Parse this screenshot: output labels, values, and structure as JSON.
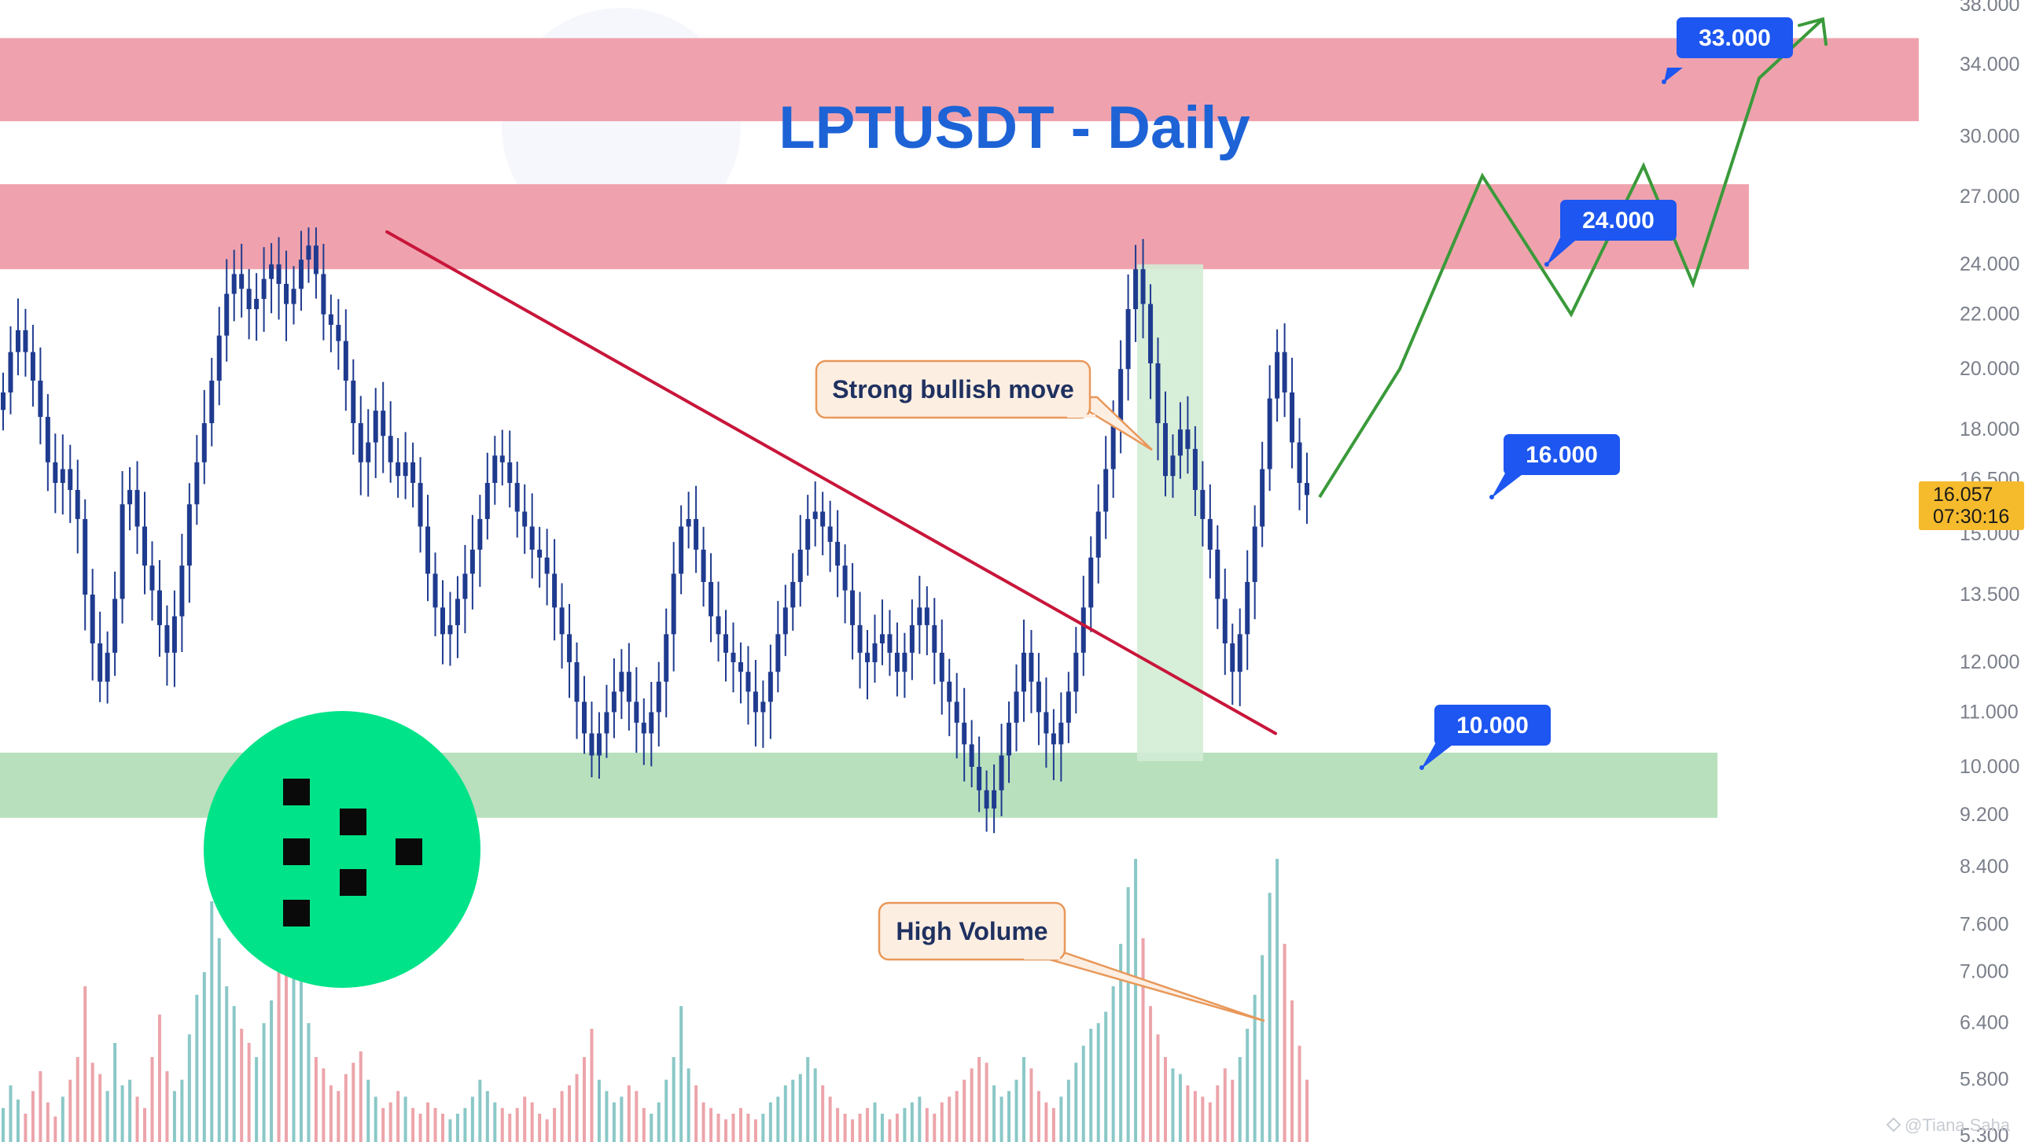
{
  "chart_data": {
    "type": "candlestick",
    "title": "LPTUSDT - Daily",
    "y_scale": "log",
    "ylim": [
      5.3,
      38.0
    ],
    "y_ticks": [
      "38.000",
      "34.000",
      "30.000",
      "27.000",
      "24.000",
      "22.000",
      "20.000",
      "18.000",
      "16.500",
      "15.000",
      "13.500",
      "12.000",
      "11.000",
      "10.000",
      "9.200",
      "8.400",
      "7.600",
      "7.000",
      "6.400",
      "5.800",
      "5.300"
    ],
    "current_price": {
      "value": "16.057",
      "countdown": "07:30:16"
    },
    "resistance_zones": [
      {
        "low": 30.8,
        "high": 35.6
      },
      {
        "low": 23.8,
        "high": 27.6
      }
    ],
    "support_zone": {
      "low": 9.15,
      "high": 10.25
    },
    "targets": [
      {
        "label": "33.000",
        "value": 33.0
      },
      {
        "label": "24.000",
        "value": 24.0
      },
      {
        "label": "16.000",
        "value": 16.0
      },
      {
        "label": "10.000",
        "value": 10.0
      }
    ],
    "annotations": [
      {
        "text": "Strong bullish move"
      },
      {
        "text": "High Volume"
      }
    ],
    "trendline": {
      "start_price": 25.4,
      "end_price": 10.6
    },
    "projected_path": [
      16.0,
      20.0,
      28.0,
      22.0,
      28.5,
      23.2,
      33.2,
      36.8
    ],
    "price_range": {
      "ymin": 8.6,
      "ymax": 25.6
    },
    "price_series": [
      19.2,
      20.6,
      21.4,
      20.6,
      19.6,
      18.4,
      17.0,
      16.4,
      16.8,
      16.2,
      15.4,
      13.5,
      12.4,
      11.6,
      12.2,
      13.4,
      15.8,
      16.2,
      15.2,
      14.2,
      13.6,
      12.8,
      12.2,
      13.0,
      14.2,
      15.8,
      17.0,
      18.2,
      19.6,
      21.2,
      22.8,
      23.6,
      23.0,
      22.2,
      22.6,
      23.4,
      24.0,
      23.2,
      22.4,
      23.0,
      24.2,
      24.8,
      23.6,
      22.0,
      21.6,
      21.0,
      19.6,
      18.2,
      17.0,
      17.6,
      18.6,
      17.8,
      17.0,
      16.6,
      17.0,
      16.4,
      15.2,
      14.0,
      13.2,
      12.6,
      12.8,
      13.4,
      14.0,
      14.6,
      15.4,
      16.4,
      17.2,
      17.0,
      16.4,
      15.6,
      15.2,
      14.6,
      14.4,
      14.0,
      13.2,
      12.6,
      12.0,
      11.2,
      10.6,
      10.2,
      10.6,
      11.0,
      11.4,
      11.8,
      11.2,
      10.8,
      10.6,
      11.0,
      11.6,
      12.6,
      14.0,
      15.2,
      15.4,
      14.6,
      13.8,
      13.0,
      12.6,
      12.2,
      12.0,
      11.8,
      11.4,
      11.0,
      11.2,
      11.8,
      12.6,
      13.2,
      13.8,
      14.6,
      15.4,
      15.6,
      15.2,
      14.8,
      14.2,
      13.6,
      12.8,
      12.2,
      12.0,
      12.4,
      12.6,
      12.2,
      11.8,
      12.2,
      12.8,
      13.2,
      12.8,
      12.2,
      11.6,
      11.2,
      10.8,
      10.4,
      10.0,
      9.6,
      9.3,
      9.6,
      10.2,
      10.8,
      11.4,
      12.2,
      11.6,
      11.0,
      10.6,
      10.4,
      10.8,
      11.4,
      12.2,
      13.2,
      14.4,
      15.6,
      16.8,
      18.2,
      20.0,
      22.2,
      23.8,
      22.4,
      20.2,
      18.2,
      16.6,
      17.2,
      18.0,
      17.4,
      16.2,
      15.4,
      14.6,
      13.4,
      12.4,
      11.8,
      12.6,
      13.8,
      15.2,
      16.8,
      19.0,
      20.6,
      19.2,
      17.6,
      16.4,
      16.057
    ],
    "volume_series": [
      0.12,
      0.2,
      0.15,
      0.1,
      0.18,
      0.25,
      0.14,
      0.09,
      0.16,
      0.22,
      0.3,
      0.55,
      0.28,
      0.24,
      0.18,
      0.35,
      0.2,
      0.22,
      0.16,
      0.12,
      0.3,
      0.45,
      0.25,
      0.18,
      0.22,
      0.38,
      0.52,
      0.6,
      0.85,
      0.72,
      0.55,
      0.48,
      0.4,
      0.35,
      0.3,
      0.42,
      0.5,
      0.62,
      0.8,
      0.95,
      0.58,
      0.42,
      0.3,
      0.26,
      0.2,
      0.18,
      0.24,
      0.28,
      0.32,
      0.22,
      0.16,
      0.12,
      0.14,
      0.18,
      0.16,
      0.12,
      0.1,
      0.14,
      0.12,
      0.1,
      0.08,
      0.1,
      0.12,
      0.16,
      0.22,
      0.18,
      0.14,
      0.12,
      0.1,
      0.12,
      0.16,
      0.14,
      0.1,
      0.08,
      0.12,
      0.18,
      0.2,
      0.24,
      0.3,
      0.4,
      0.22,
      0.18,
      0.14,
      0.16,
      0.2,
      0.18,
      0.12,
      0.1,
      0.14,
      0.22,
      0.3,
      0.48,
      0.26,
      0.2,
      0.14,
      0.12,
      0.1,
      0.08,
      0.1,
      0.12,
      0.1,
      0.08,
      0.1,
      0.14,
      0.16,
      0.2,
      0.22,
      0.24,
      0.3,
      0.26,
      0.2,
      0.16,
      0.12,
      0.1,
      0.08,
      0.1,
      0.12,
      0.14,
      0.1,
      0.08,
      0.1,
      0.12,
      0.14,
      0.16,
      0.12,
      0.1,
      0.14,
      0.16,
      0.18,
      0.22,
      0.26,
      0.3,
      0.28,
      0.2,
      0.16,
      0.18,
      0.22,
      0.3,
      0.26,
      0.18,
      0.14,
      0.12,
      0.16,
      0.22,
      0.28,
      0.34,
      0.4,
      0.42,
      0.46,
      0.55,
      0.7,
      0.9,
      1.0,
      0.72,
      0.48,
      0.38,
      0.3,
      0.26,
      0.24,
      0.2,
      0.18,
      0.16,
      0.14,
      0.2,
      0.26,
      0.22,
      0.3,
      0.4,
      0.52,
      0.66,
      0.88,
      1.0,
      0.7,
      0.5,
      0.34,
      0.22
    ]
  },
  "watermark": {
    "credit": "@Tiana Saha"
  },
  "colors": {
    "resistance_fill": "#ee9aa6",
    "support_fill": "#b4deb9",
    "breakout_fill": "#d3ecd5",
    "candle": "#1f3b8f",
    "trendline": "#c8163a",
    "path": "#3a9a3a",
    "target_box": "#1d56f0",
    "callout_fill": "#fdeee2",
    "callout_stroke": "#e8985a",
    "price_tag": "#f5bb2d",
    "logo": "#00e388",
    "title": "#1e63d6",
    "volume_up": "#63b6b4",
    "volume_down": "#e6858d"
  }
}
